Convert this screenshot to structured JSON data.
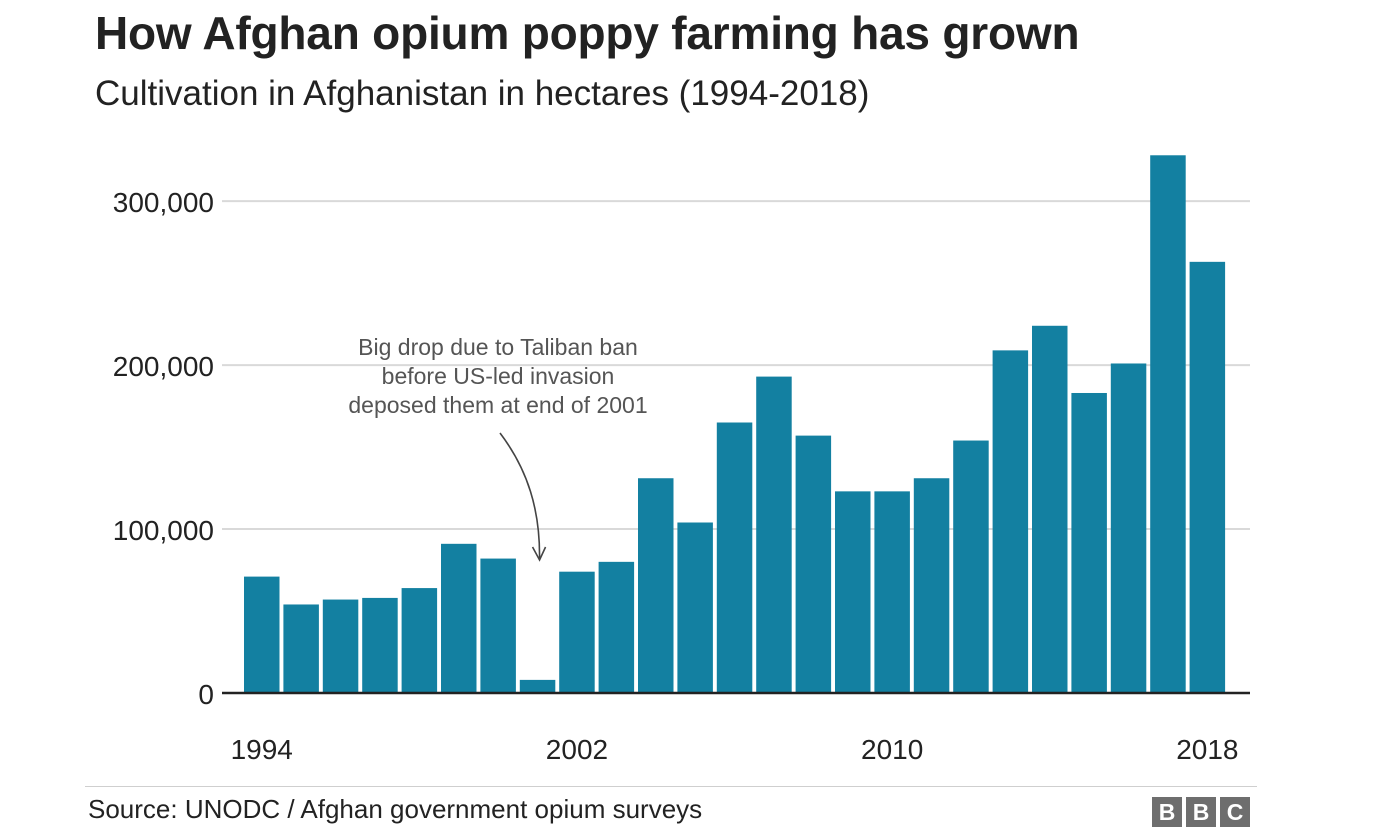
{
  "chart_data": {
    "type": "bar",
    "title": "How Afghan opium poppy farming has grown",
    "subtitle": "Cultivation in Afghanistan in hectares (1994-2018)",
    "xlabel": "",
    "ylabel": "",
    "categories": [
      "1994",
      "1995",
      "1996",
      "1997",
      "1998",
      "1999",
      "2000",
      "2001",
      "2002",
      "2003",
      "2004",
      "2005",
      "2006",
      "2007",
      "2008",
      "2009",
      "2010",
      "2011",
      "2012",
      "2013",
      "2014",
      "2015",
      "2016",
      "2017",
      "2018"
    ],
    "values": [
      71000,
      54000,
      57000,
      58000,
      64000,
      91000,
      82000,
      8000,
      74000,
      80000,
      131000,
      104000,
      165000,
      193000,
      157000,
      123000,
      123000,
      131000,
      154000,
      209000,
      224000,
      183000,
      201000,
      328000,
      263000
    ],
    "x_tick_labels": [
      "1994",
      "2002",
      "2010",
      "2018"
    ],
    "y_ticks": [
      0,
      100000,
      200000,
      300000
    ],
    "y_tick_labels": [
      "0",
      "100,000",
      "200,000",
      "300,000"
    ],
    "ylim": [
      0,
      330000
    ],
    "grid": true,
    "bar_color": "#1380a1",
    "annotation": {
      "lines": [
        "Big drop due to Taliban ban",
        "before US-led invasion",
        "deposed them at end of 2001"
      ],
      "target": "2001"
    }
  },
  "source": "Source: UNODC / Afghan government opium surveys",
  "logo": [
    "B",
    "B",
    "C"
  ]
}
